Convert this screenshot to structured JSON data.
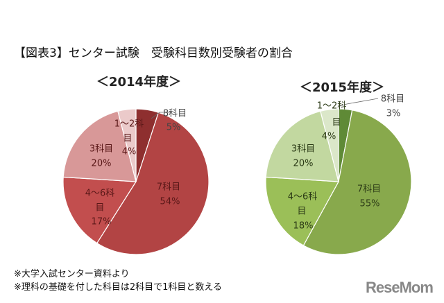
{
  "title": "【図表3】センター試験　受験科目数別受験者の割合",
  "chart_data": [
    {
      "type": "pie",
      "title": "＜2014年度＞",
      "start": "top",
      "direction": "clockwise",
      "categories": [
        "8科目",
        "7科目",
        "4～6科目",
        "3科目",
        "1～2科目"
      ],
      "values": [
        5,
        54,
        17,
        20,
        4
      ],
      "colors": [
        "#8e2f2f",
        "#b24444",
        "#c24e4e",
        "#d89898",
        "#ebcaca"
      ],
      "labels": {
        "c8": "8科目",
        "p8": "5%",
        "c7": "7科目",
        "p7": "54%",
        "c46a": "4～6科",
        "c46b": "目",
        "p46": "17%",
        "c3": "3科目",
        "p3": "20%",
        "c12a": "1～2科",
        "c12b": "目",
        "p12": "4%"
      }
    },
    {
      "type": "pie",
      "title": "＜2015年度＞",
      "start": "top",
      "direction": "clockwise",
      "categories": [
        "8科目",
        "7科目",
        "4～6科目",
        "3科目",
        "1～2科目"
      ],
      "values": [
        3,
        55,
        18,
        20,
        4
      ],
      "colors": [
        "#5f8a36",
        "#88a94c",
        "#9bbf58",
        "#c2d8a0",
        "#dbe7c9"
      ],
      "labels": {
        "c8": "8科目",
        "p8": "3%",
        "c7": "7科目",
        "p7": "55%",
        "c46a": "4～6科",
        "c46b": "目",
        "p46": "18%",
        "c3": "3科目",
        "p3": "20%",
        "c12a": "1～2科",
        "c12b": "目",
        "p12": "4%"
      }
    }
  ],
  "notes": [
    "※大学入試センター資料より",
    "※理科の基礎を付した科目は2科目で1科目と数える"
  ],
  "logo": "ReseMom"
}
